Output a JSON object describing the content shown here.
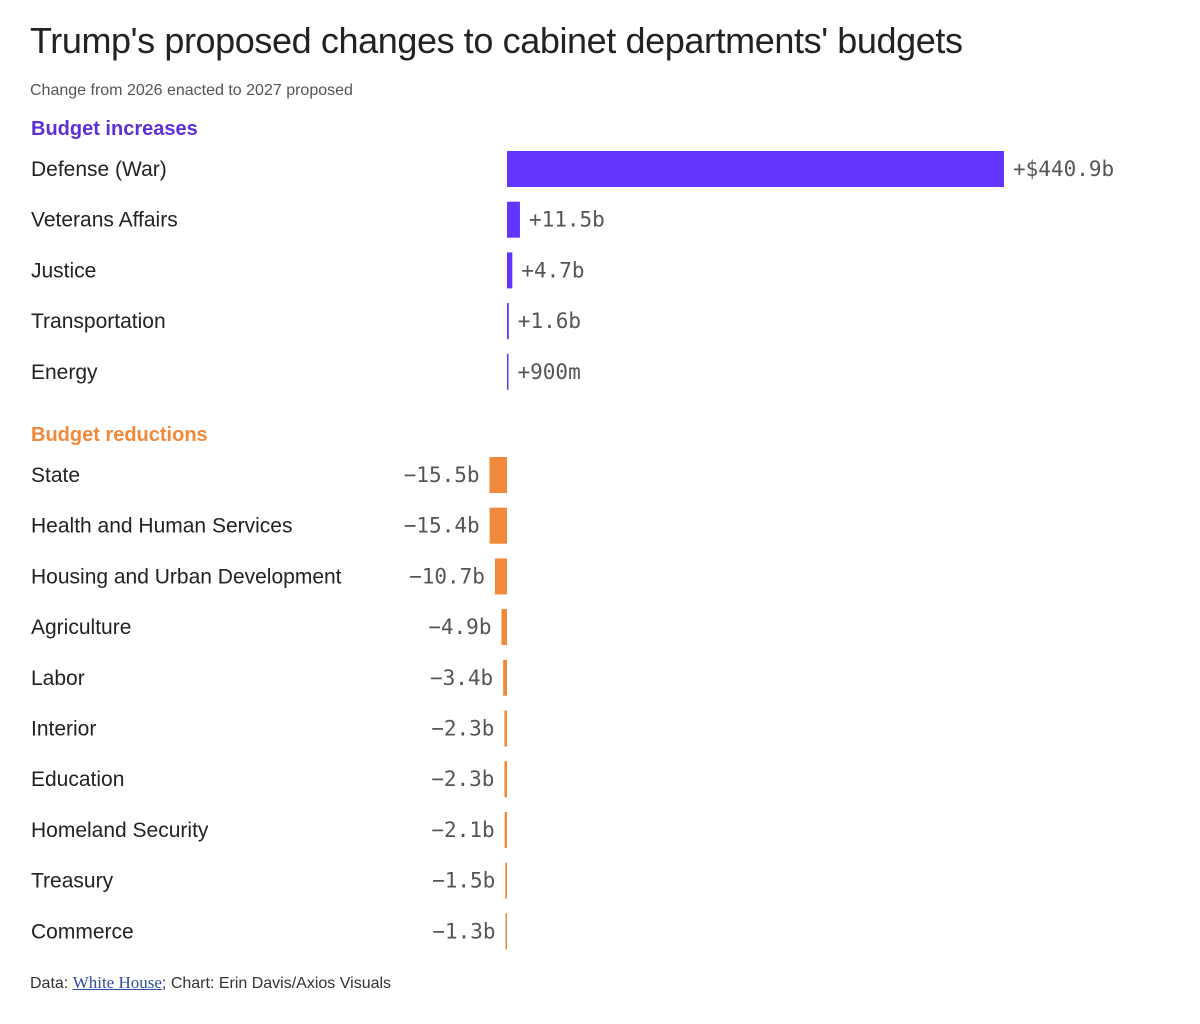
{
  "colors": {
    "increase": "#6236ff",
    "reduction": "#f0893a",
    "increase_label": "#5d2fd6",
    "reduction_label": "#f0893a"
  },
  "chart_data": {
    "type": "bar",
    "orientation": "horizontal",
    "title": "Trump's proposed changes to cabinet departments' budgets",
    "subtitle": "Change from 2026 enacted to 2027 proposed",
    "unit": "billions of dollars",
    "groups": [
      {
        "name": "Budget increases",
        "categories": [
          "Defense (War)",
          "Veterans Affairs",
          "Justice",
          "Transportation",
          "Energy"
        ],
        "values": [
          440.9,
          11.5,
          4.7,
          1.6,
          0.9
        ],
        "labels": [
          "+$440.9b",
          "+11.5b",
          "+4.7b",
          "+1.6b",
          "+900m"
        ]
      },
      {
        "name": "Budget reductions",
        "categories": [
          "State",
          "Health and Human Services",
          "Housing and Urban Development",
          "Agriculture",
          "Labor",
          "Interior",
          "Education",
          "Homeland Security",
          "Treasury",
          "Commerce"
        ],
        "values": [
          -15.5,
          -15.4,
          -10.7,
          -4.9,
          -3.4,
          -2.3,
          -2.3,
          -2.1,
          -1.5,
          -1.3
        ],
        "labels": [
          "−15.5b",
          "−15.4b",
          "−10.7b",
          "−4.9b",
          "−3.4b",
          "−2.3b",
          "−2.3b",
          "−2.1b",
          "−1.5b",
          "−1.3b"
        ]
      }
    ],
    "source": {
      "prefix": "Data: ",
      "link_text": "White House",
      "suffix": "; Chart: Erin Davis/Axios Visuals"
    }
  }
}
